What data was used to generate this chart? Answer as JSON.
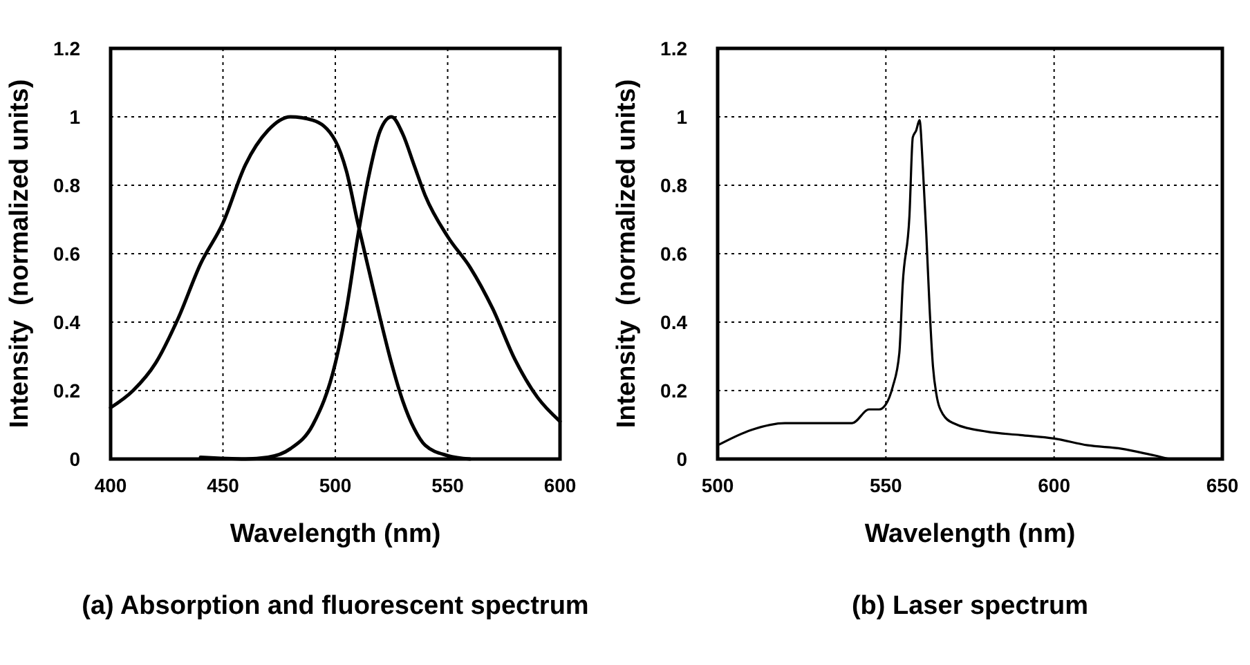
{
  "chart_data": [
    {
      "type": "line",
      "title": "(a) Absorption and fluorescent spectrum",
      "xlabel": "Wavelength (nm)",
      "ylabel": "Intensity  (normalized units)",
      "xlim": [
        400,
        600
      ],
      "xticks": [
        400,
        450,
        500,
        550,
        600
      ],
      "ylim": [
        0,
        1.2
      ],
      "yticks": [
        0,
        0.2,
        0.4,
        0.6,
        0.8,
        1,
        1.2
      ],
      "grid": true,
      "marker": "none",
      "line_style": "solid",
      "series": [
        {
          "color": "#000000",
          "x": [
            400,
            410,
            420,
            430,
            440,
            450,
            460,
            470,
            480,
            490,
            500,
            505,
            510,
            515,
            520,
            525,
            530,
            535,
            540,
            550,
            560
          ],
          "values": [
            0.15,
            0.2,
            0.28,
            0.41,
            0.57,
            0.69,
            0.86,
            0.96,
            1.0,
            0.99,
            0.93,
            0.84,
            0.69,
            0.55,
            0.41,
            0.28,
            0.17,
            0.09,
            0.04,
            0.01,
            0
          ]
        },
        {
          "color": "#000000",
          "x": [
            440,
            460,
            470,
            480,
            490,
            500,
            505,
            510,
            515,
            520,
            525,
            530,
            535,
            540,
            550,
            560,
            570,
            580,
            590,
            600
          ],
          "values": [
            0.005,
            0,
            0.005,
            0.03,
            0.1,
            0.28,
            0.44,
            0.65,
            0.83,
            0.96,
            1.0,
            0.95,
            0.86,
            0.77,
            0.65,
            0.56,
            0.44,
            0.29,
            0.18,
            0.11
          ]
        }
      ]
    },
    {
      "type": "line",
      "title": "(b) Laser spectrum",
      "xlabel": "Wavelength (nm)",
      "ylabel": "Intensity  (normalized units)",
      "xlim": [
        500,
        650
      ],
      "xticks": [
        500,
        550,
        600,
        650
      ],
      "ylim": [
        0,
        1.2
      ],
      "yticks": [
        0,
        0.2,
        0.4,
        0.6,
        0.8,
        1,
        1.2
      ],
      "grid": true,
      "marker": "none",
      "line_style": "solid",
      "series": [
        {
          "color": "#000000",
          "x": [
            500,
            510,
            520,
            530,
            540,
            545,
            548,
            550,
            552,
            554,
            555,
            557,
            558,
            559,
            560,
            561,
            562,
            563,
            564,
            565,
            567,
            570,
            580,
            590,
            600,
            610,
            620,
            630,
            635,
            640
          ],
          "values": [
            0.04,
            0.085,
            0.105,
            0.105,
            0.105,
            0.145,
            0.145,
            0.16,
            0.21,
            0.31,
            0.51,
            0.71,
            0.94,
            0.96,
            0.99,
            0.85,
            0.66,
            0.44,
            0.27,
            0.19,
            0.13,
            0.105,
            0.08,
            0.07,
            0.06,
            0.04,
            0.03,
            0.01,
            0,
            0
          ]
        }
      ]
    }
  ]
}
